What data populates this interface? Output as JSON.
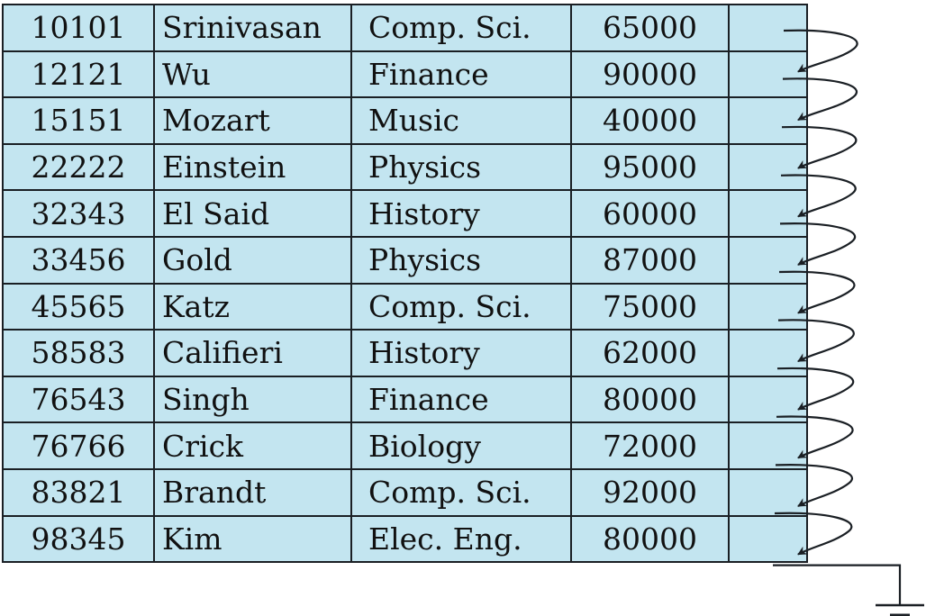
{
  "records": [
    {
      "id": "10101",
      "name": "Srinivasan",
      "dept": "Comp. Sci.",
      "salary": "65000"
    },
    {
      "id": "12121",
      "name": "Wu",
      "dept": "Finance",
      "salary": "90000"
    },
    {
      "id": "15151",
      "name": "Mozart",
      "dept": "Music",
      "salary": "40000"
    },
    {
      "id": "22222",
      "name": "Einstein",
      "dept": "Physics",
      "salary": "95000"
    },
    {
      "id": "32343",
      "name": "El Said",
      "dept": "History",
      "salary": "60000"
    },
    {
      "id": "33456",
      "name": "Gold",
      "dept": "Physics",
      "salary": "87000"
    },
    {
      "id": "45565",
      "name": "Katz",
      "dept": "Comp. Sci.",
      "salary": "75000"
    },
    {
      "id": "58583",
      "name": "Califieri",
      "dept": "History",
      "salary": "62000"
    },
    {
      "id": "76543",
      "name": "Singh",
      "dept": "Finance",
      "salary": "80000"
    },
    {
      "id": "76766",
      "name": "Crick",
      "dept": "Biology",
      "salary": "72000"
    },
    {
      "id": "83821",
      "name": "Brandt",
      "dept": "Comp. Sci.",
      "salary": "92000"
    },
    {
      "id": "98345",
      "name": "Kim",
      "dept": "Elec. Eng.",
      "salary": "80000"
    }
  ],
  "colors": {
    "cell_fill": "#c3e5f0",
    "line": "#1a1f24"
  }
}
